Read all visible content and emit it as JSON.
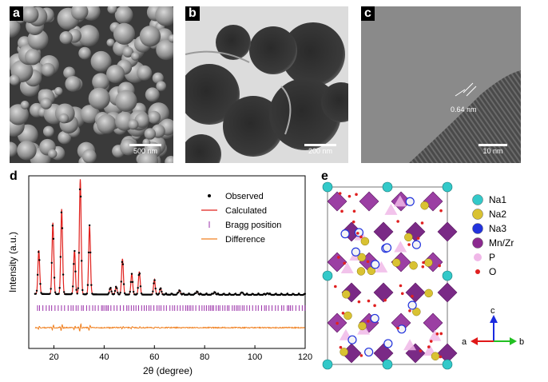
{
  "panels": {
    "a": {
      "label": "a",
      "scale_bar": "500 nm"
    },
    "b": {
      "label": "b",
      "scale_bar": "200 nm"
    },
    "c": {
      "label": "c",
      "scale_bar": "10 nm",
      "annotation": "0.64 nm"
    },
    "d": {
      "label": "d"
    },
    "e": {
      "label": "e",
      "legend": [
        {
          "name": "Na1",
          "color": "#33c9c9"
        },
        {
          "name": "Na2",
          "color": "#d9c232"
        },
        {
          "name": "Na3",
          "color": "#2233dd"
        },
        {
          "name": "Mn/Zr",
          "color": "#8b2a8f"
        },
        {
          "name": "P",
          "color": "#f0b8e8"
        },
        {
          "name": "O",
          "color": "#e02020"
        }
      ],
      "axes": {
        "a": "a",
        "b": "b",
        "c": "c"
      }
    }
  },
  "chart_data": {
    "type": "line",
    "xlabel": "2θ (degree)",
    "ylabel": "Intensity (a.u.)",
    "xlim": [
      10,
      120
    ],
    "xticks": [
      20,
      40,
      60,
      80,
      100,
      120
    ],
    "legend_placement": "top-right",
    "series": [
      {
        "name": "Observed",
        "style": "dots",
        "color": "#000000"
      },
      {
        "name": "Calculated",
        "style": "line",
        "color": "#e0201c"
      },
      {
        "name": "Bragg position",
        "style": "ticks",
        "color": "#9a2fa8"
      },
      {
        "name": "Difference",
        "style": "line",
        "color": "#f08020"
      }
    ],
    "peaks": [
      {
        "x": 14.0,
        "y": 0.38
      },
      {
        "x": 19.6,
        "y": 0.62
      },
      {
        "x": 23.1,
        "y": 0.74
      },
      {
        "x": 28.2,
        "y": 0.38
      },
      {
        "x": 30.5,
        "y": 1.0
      },
      {
        "x": 34.2,
        "y": 0.6
      },
      {
        "x": 42.5,
        "y": 0.06
      },
      {
        "x": 44.8,
        "y": 0.07
      },
      {
        "x": 47.3,
        "y": 0.31
      },
      {
        "x": 51.0,
        "y": 0.18
      },
      {
        "x": 54.0,
        "y": 0.2
      },
      {
        "x": 60.0,
        "y": 0.12
      },
      {
        "x": 62.5,
        "y": 0.05
      },
      {
        "x": 70.0,
        "y": 0.04
      },
      {
        "x": 77.0,
        "y": 0.03
      },
      {
        "x": 84.0,
        "y": 0.025
      },
      {
        "x": 95.0,
        "y": 0.02
      },
      {
        "x": 105.0,
        "y": 0.015
      }
    ]
  }
}
